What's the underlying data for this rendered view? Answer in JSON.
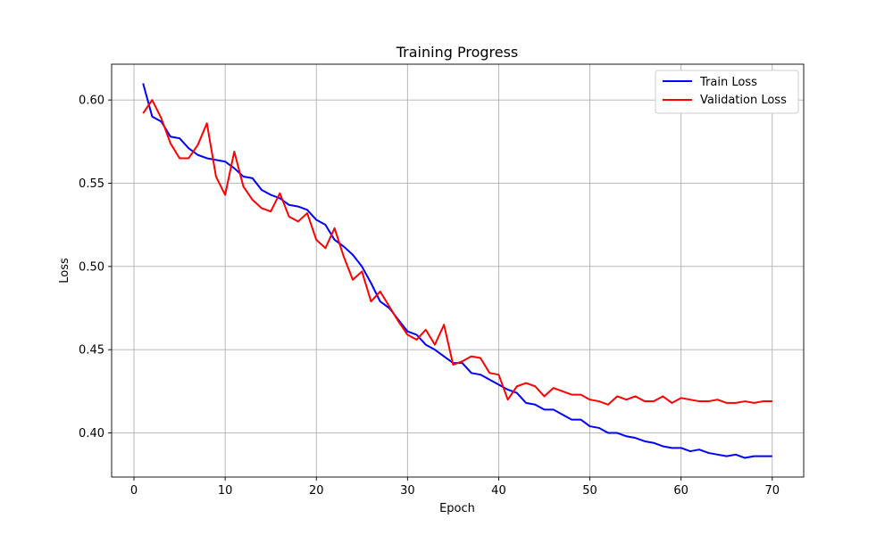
{
  "chart_data": {
    "type": "line",
    "title": "Training Progress",
    "xlabel": "Epoch",
    "ylabel": "Loss",
    "xlim": [
      -2.45,
      73.45
    ],
    "ylim": [
      0.3735,
      0.6215
    ],
    "xticks": [
      0,
      10,
      20,
      30,
      40,
      50,
      60,
      70
    ],
    "yticks": [
      0.4,
      0.45,
      0.5,
      0.55,
      0.6
    ],
    "xtick_labels": [
      "0",
      "10",
      "20",
      "30",
      "40",
      "50",
      "60",
      "70"
    ],
    "ytick_labels": [
      "0.40",
      "0.45",
      "0.50",
      "0.55",
      "0.60"
    ],
    "grid": true,
    "legend_position": "top-right",
    "x": [
      1,
      2,
      3,
      4,
      5,
      6,
      7,
      8,
      9,
      10,
      11,
      12,
      13,
      14,
      15,
      16,
      17,
      18,
      19,
      20,
      21,
      22,
      23,
      24,
      25,
      26,
      27,
      28,
      29,
      30,
      31,
      32,
      33,
      34,
      35,
      36,
      37,
      38,
      39,
      40,
      41,
      42,
      43,
      44,
      45,
      46,
      47,
      48,
      49,
      50,
      51,
      52,
      53,
      54,
      55,
      56,
      57,
      58,
      59,
      60,
      61,
      62,
      63,
      64,
      65,
      66,
      67,
      68,
      69,
      70
    ],
    "series": [
      {
        "name": "Train Loss",
        "color": "#0000ff",
        "values": [
          0.61,
          0.59,
          0.587,
          0.578,
          0.577,
          0.571,
          0.567,
          0.565,
          0.564,
          0.563,
          0.559,
          0.554,
          0.553,
          0.546,
          0.543,
          0.541,
          0.537,
          0.536,
          0.534,
          0.528,
          0.525,
          0.516,
          0.512,
          0.507,
          0.5,
          0.49,
          0.479,
          0.475,
          0.468,
          0.461,
          0.459,
          0.453,
          0.45,
          0.446,
          0.442,
          0.442,
          0.436,
          0.435,
          0.432,
          0.429,
          0.426,
          0.424,
          0.418,
          0.417,
          0.414,
          0.414,
          0.411,
          0.408,
          0.408,
          0.404,
          0.403,
          0.4,
          0.4,
          0.398,
          0.397,
          0.395,
          0.394,
          0.392,
          0.391,
          0.391,
          0.389,
          0.39,
          0.388,
          0.387,
          0.386,
          0.387,
          0.385,
          0.386,
          0.386,
          0.386
        ]
      },
      {
        "name": "Validation Loss",
        "color": "#ff0000",
        "values": [
          0.592,
          0.6,
          0.589,
          0.574,
          0.565,
          0.565,
          0.573,
          0.586,
          0.554,
          0.543,
          0.569,
          0.548,
          0.54,
          0.535,
          0.533,
          0.544,
          0.53,
          0.527,
          0.532,
          0.516,
          0.511,
          0.523,
          0.506,
          0.492,
          0.497,
          0.479,
          0.485,
          0.476,
          0.467,
          0.459,
          0.456,
          0.462,
          0.453,
          0.465,
          0.441,
          0.443,
          0.446,
          0.445,
          0.436,
          0.435,
          0.42,
          0.428,
          0.43,
          0.428,
          0.422,
          0.427,
          0.425,
          0.423,
          0.423,
          0.42,
          0.419,
          0.417,
          0.422,
          0.42,
          0.422,
          0.419,
          0.419,
          0.422,
          0.418,
          0.421,
          0.42,
          0.419,
          0.419,
          0.42,
          0.418,
          0.418,
          0.419,
          0.418,
          0.419,
          0.419
        ]
      }
    ]
  }
}
